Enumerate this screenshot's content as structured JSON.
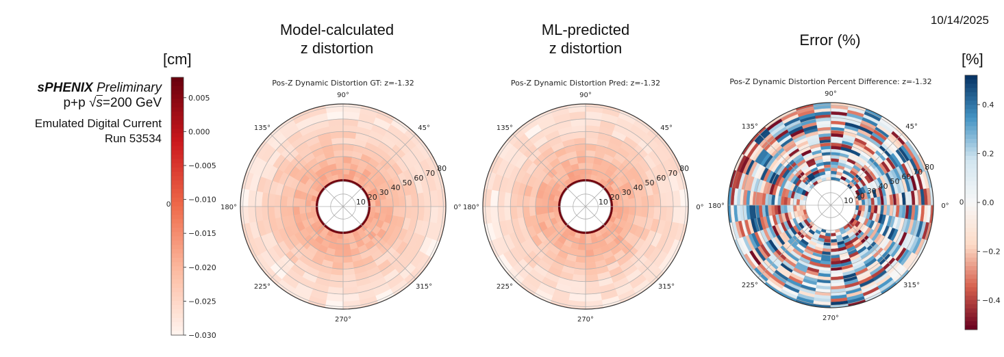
{
  "date": "10/14/2025",
  "info": {
    "experiment": "sPHENIX",
    "status": "Preliminary",
    "collision_prefix": "p+p",
    "sqrt_s": "s",
    "energy": "=200 GeV",
    "line3": "Emulated Digital Current",
    "line4": "Run 53534"
  },
  "panel_headers": [
    {
      "line1": "Model-calculated",
      "line2": "z distortion"
    },
    {
      "line1": "ML-predicted",
      "line2": "z distortion"
    },
    {
      "line1": "Error (%)",
      "line2": ""
    }
  ],
  "colorbar_units": {
    "left": "[cm]",
    "right": "[%]"
  },
  "stray_label": "0",
  "chart_data": [
    {
      "type": "heatmap",
      "subtype": "polar",
      "title": "Pos-Z Dynamic Distortion GT: z=-1.32",
      "angle_ticks": [
        "0°",
        "45°",
        "90°",
        "135°",
        "180°",
        "225°",
        "270°",
        "315°"
      ],
      "radial_ticks": [
        "10",
        "20",
        "30",
        "40",
        "50",
        "60",
        "70",
        "80"
      ],
      "rlim": [
        0,
        82
      ],
      "colormap": "Reds",
      "clim": [
        -0.03,
        0.008
      ],
      "radial_profile": {
        "r_edges": [
          20,
          22,
          30,
          40,
          50,
          60,
          70,
          82
        ],
        "values": [
          0.007,
          -0.019,
          -0.02,
          -0.022,
          -0.024,
          -0.026,
          -0.027
        ]
      }
    },
    {
      "type": "heatmap",
      "subtype": "polar",
      "title": "Pos-Z Dynamic Distortion Pred: z=-1.32",
      "angle_ticks": [
        "0°",
        "45°",
        "90°",
        "135°",
        "180°",
        "225°",
        "270°",
        "315°"
      ],
      "radial_ticks": [
        "10",
        "20",
        "30",
        "40",
        "50",
        "60",
        "70",
        "80"
      ],
      "rlim": [
        0,
        82
      ],
      "colormap": "Reds",
      "clim": [
        -0.03,
        0.008
      ],
      "radial_profile": {
        "r_edges": [
          20,
          22,
          30,
          40,
          50,
          60,
          70,
          82
        ],
        "values": [
          0.007,
          -0.019,
          -0.02,
          -0.022,
          -0.024,
          -0.026,
          -0.027
        ]
      }
    },
    {
      "type": "heatmap",
      "subtype": "polar",
      "title": "Pos-Z Dynamic Distortion Percent Difference: z=-1.32",
      "angle_ticks": [
        "0°",
        "45°",
        "90°",
        "135°",
        "180°",
        "225°",
        "270°",
        "315°"
      ],
      "radial_ticks": [
        "10",
        "20",
        "30",
        "40",
        "50",
        "60",
        "70",
        "80"
      ],
      "rlim": [
        0,
        82
      ],
      "colormap": "RdBu",
      "clim": [
        -0.52,
        0.52
      ],
      "value_range": [
        -0.5,
        0.5
      ]
    }
  ],
  "colorbars": [
    {
      "label": "[cm]",
      "ticks": [
        "0.005",
        "0.000",
        "−0.005",
        "−0.010",
        "−0.015",
        "−0.020",
        "−0.025",
        "−0.030"
      ],
      "tick_values": [
        0.005,
        0,
        -0.005,
        -0.01,
        -0.015,
        -0.02,
        -0.025,
        -0.03
      ],
      "range": [
        -0.03,
        0.008
      ]
    },
    {
      "label": "[%]",
      "ticks": [
        "0.4",
        "0.2",
        "0.0",
        "−0.2",
        "−0.4"
      ],
      "tick_values": [
        0.4,
        0.2,
        0,
        -0.2,
        -0.4
      ],
      "range": [
        -0.52,
        0.52
      ]
    }
  ]
}
